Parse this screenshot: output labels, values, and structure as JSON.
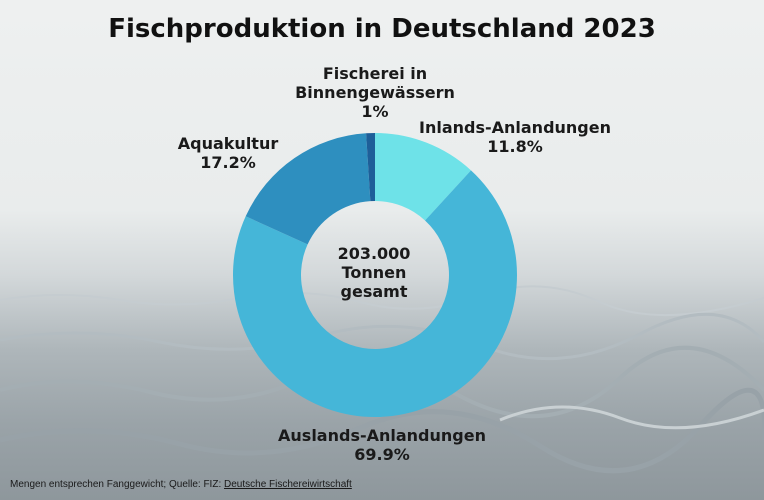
{
  "chart_data": {
    "type": "pie",
    "title": "Fischproduktion in Deutschland 2023",
    "center_label": [
      "203.000",
      "Tonnen",
      "gesamt"
    ],
    "categories": [
      "Inlands-Anlandungen",
      "Auslands-Anlandungen",
      "Aquakultur",
      "Fischerei in Binnengewässern"
    ],
    "values": [
      11.8,
      69.9,
      17.2,
      1
    ],
    "value_labels": [
      "11.8%",
      "69.9%",
      "17.2%",
      "1%"
    ],
    "colors": [
      "#6ee2e8",
      "#45b6d8",
      "#2e8fbf",
      "#1e5f99"
    ],
    "label_lines": [
      [
        "Inlands-Anlandungen"
      ],
      [
        "Auslands-Anlandungen"
      ],
      [
        "Aquakultur"
      ],
      [
        "Fischerei in",
        "Binnengewässern"
      ]
    ]
  },
  "footer": {
    "text": "Mengen entsprechen Fanggewicht; Quelle: FIZ: ",
    "link": "Deutsche Fischereiwirtschaft"
  }
}
